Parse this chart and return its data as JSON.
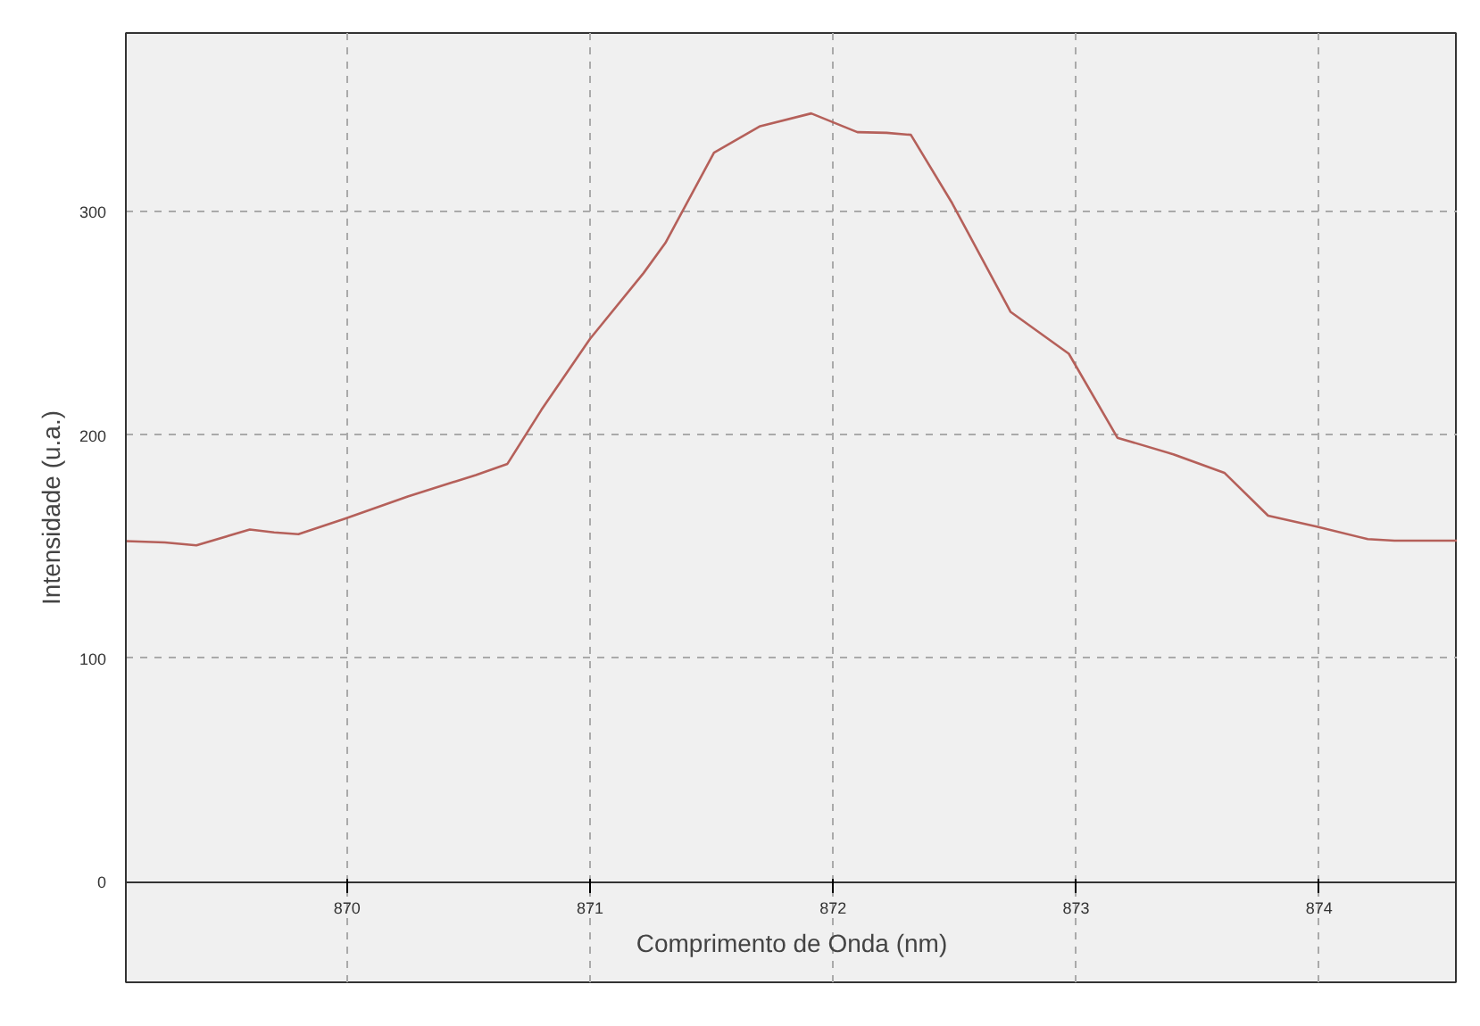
{
  "chart_data": {
    "type": "line",
    "xlabel": "Comprimento de Onda (nm)",
    "ylabel": "Intensidade (u.a.)",
    "xlim": [
      869.09,
      874.57
    ],
    "ylim": [
      -45,
      380
    ],
    "xticks": [
      870,
      871,
      872,
      873,
      874
    ],
    "yticks": [
      0,
      100,
      200,
      300
    ],
    "grid": true,
    "line_style": "solid",
    "series": [
      {
        "color": "#b5605a",
        "x": [
          869.09,
          869.25,
          869.38,
          869.6,
          869.7,
          869.8,
          869.99,
          870.25,
          870.53,
          870.66,
          870.8,
          871.0,
          871.22,
          871.31,
          871.51,
          871.7,
          871.91,
          872.1,
          872.22,
          872.32,
          872.49,
          872.73,
          872.97,
          873.17,
          873.4,
          873.61,
          873.79,
          873.99,
          874.2,
          874.31,
          874.57
        ],
        "values": [
          152.5,
          151.9,
          150.6,
          157.7,
          156.4,
          155.6,
          162.5,
          172.5,
          182.1,
          187.1,
          211.3,
          243.1,
          272.5,
          286.0,
          326.4,
          338.3,
          344.0,
          335.6,
          335.3,
          334.4,
          303.8,
          255.2,
          236.4,
          198.8,
          191.4,
          183.1,
          163.9,
          159.0,
          153.4,
          152.7,
          152.7
        ]
      }
    ]
  }
}
